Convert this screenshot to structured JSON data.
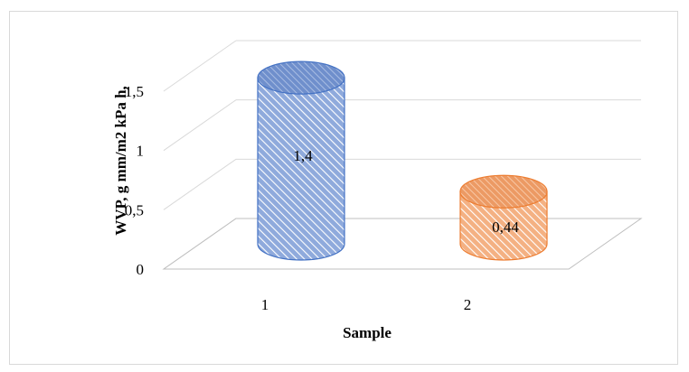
{
  "chart_data": {
    "type": "bar",
    "style": "3d-cylinder",
    "categories": [
      "1",
      "2"
    ],
    "series": [
      {
        "values": [
          1.4,
          0.44
        ],
        "data_labels": [
          "1,4",
          "0,44"
        ]
      }
    ],
    "bar_colors": [
      "#8faadc",
      "#f4b183"
    ],
    "bar_edge_colors": [
      "#4472c4",
      "#ed7d31"
    ],
    "title": "",
    "xlabel": "Sample",
    "ylabel": "WVP, g mm/m2 kPa h,",
    "y_ticks": [
      "0",
      "0,5",
      "1",
      "1,5"
    ],
    "ylim": [
      0,
      1.5
    ],
    "grid": true,
    "legend": "none",
    "fill_pattern": "diagonal-hatch"
  }
}
